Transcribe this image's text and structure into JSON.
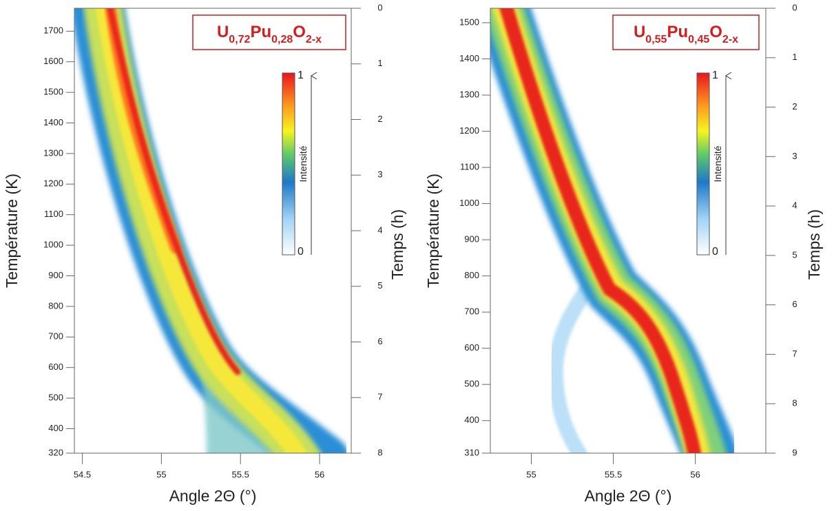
{
  "chart_data": [
    {
      "type": "heatmap",
      "title": {
        "elements": [
          "U",
          "Pu",
          "O"
        ],
        "subscripts": [
          "0,72",
          "0,28",
          "2-x"
        ]
      },
      "xlabel": "Angle 2Θ (°)",
      "ylabel": "Température (K)",
      "y2label": "Temps (h)",
      "xlim": [
        54.45,
        56.2
      ],
      "xticks": [
        54.5,
        55,
        55.5,
        56
      ],
      "ylim": [
        320,
        1775
      ],
      "yticks": [
        320,
        400,
        500,
        600,
        700,
        800,
        900,
        1000,
        1100,
        1200,
        1300,
        1400,
        1500,
        1600,
        1700
      ],
      "y2lim": [
        8,
        0
      ],
      "y2ticks": [
        0,
        1,
        2,
        3,
        4,
        5,
        6,
        7,
        8
      ],
      "colorbar": {
        "label": "Intensité",
        "clim": [
          0,
          1
        ],
        "ticks": [
          0,
          1
        ]
      }
    },
    {
      "type": "heatmap",
      "title": {
        "elements": [
          "U",
          "Pu",
          "O"
        ],
        "subscripts": [
          "0,55",
          "0,45",
          "2-x"
        ]
      },
      "xlabel": "Angle 2Θ (°)",
      "ylabel": "Température (K)",
      "y2label": "Temps (h)",
      "xlim": [
        54.75,
        56.43
      ],
      "xticks": [
        55,
        55.5,
        56
      ],
      "ylim": [
        310,
        1540
      ],
      "yticks": [
        310,
        400,
        500,
        600,
        700,
        800,
        900,
        1000,
        1100,
        1200,
        1300,
        1400,
        1500
      ],
      "y2lim": [
        9,
        0
      ],
      "y2ticks": [
        0,
        1,
        2,
        3,
        4,
        5,
        6,
        7,
        8,
        9
      ],
      "colorbar": {
        "label": "Intensité",
        "clim": [
          0,
          1
        ],
        "ticks": [
          0,
          1
        ]
      }
    }
  ]
}
